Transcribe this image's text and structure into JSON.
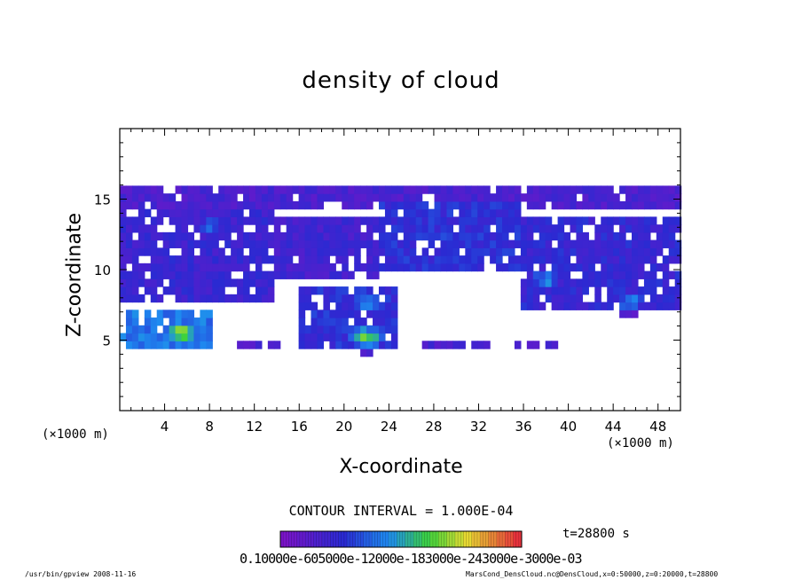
{
  "chart_data": {
    "type": "heatmap",
    "title": "density of cloud",
    "xlabel": "X-coordinate",
    "ylabel": "Z-coordinate",
    "x_unit_label": "(×1000 m)",
    "x_unit_label_right": "(×1000 m)",
    "x_ticks": [
      "4",
      "8",
      "12",
      "16",
      "20",
      "24",
      "28",
      "32",
      "36",
      "40",
      "44",
      "48"
    ],
    "y_ticks": [
      "5",
      "10",
      "15"
    ],
    "xlim": [
      0,
      50
    ],
    "ylim": [
      0,
      20
    ],
    "contour_interval_text": "CONTOUR INTERVAL = 1.000E-04",
    "time_text": "t=28800 s",
    "colorbar_labels_text": "0.10000e-605000e-12000e-183000e-243000e-3000e-03",
    "colorbar_range": [
      0.0001,
      0.003
    ],
    "colors": {
      "low": "#7a14c8",
      "mid_low": "#2a2ad2",
      "mid": "#1e8cf0",
      "mid_high": "#3cd23c",
      "high": "#e6323c"
    },
    "regions": [
      {
        "x": [
          0,
          50
        ],
        "z": [
          14.2,
          16
        ],
        "level": 0.15
      },
      {
        "x": [
          0,
          14
        ],
        "z": [
          7.5,
          14.5
        ],
        "level": 0.2
      },
      {
        "x": [
          14,
          23
        ],
        "z": [
          9.5,
          13.5
        ],
        "level": 0.18
      },
      {
        "x": [
          23,
          36
        ],
        "z": [
          10,
          15
        ],
        "level": 0.25
      },
      {
        "x": [
          36,
          50
        ],
        "z": [
          7,
          14
        ],
        "level": 0.22
      },
      {
        "x": [
          16,
          25
        ],
        "z": [
          4.3,
          9
        ],
        "level": 0.25
      },
      {
        "x": [
          0,
          8.5
        ],
        "z": [
          4.5,
          7
        ],
        "level": 0.4
      },
      {
        "x": [
          27,
          33
        ],
        "z": [
          4.5,
          5
        ],
        "level": 0.15
      },
      {
        "x": [
          35,
          39
        ],
        "z": [
          4.5,
          5
        ],
        "level": 0.15
      },
      {
        "x": [
          10.5,
          14.5
        ],
        "z": [
          4.4,
          4.9
        ],
        "level": 0.15
      }
    ],
    "hotspots": [
      {
        "x": 5.5,
        "z": 5.6,
        "level": 0.7
      },
      {
        "x": 22,
        "z": 5.2,
        "level": 0.65
      },
      {
        "x": 22,
        "z": 7.7,
        "level": 0.45
      },
      {
        "x": 38,
        "z": 9.3,
        "level": 0.45
      },
      {
        "x": 45.5,
        "z": 7.8,
        "level": 0.42
      },
      {
        "x": 8,
        "z": 13,
        "level": 0.35
      },
      {
        "x": 29,
        "z": 12.5,
        "level": 0.32
      }
    ]
  },
  "footer": {
    "left": "/usr/bin/gpview  2008-11-16",
    "right": "MarsCond_DensCloud.nc@DensCloud,x=0:50000,z=0:20000,t=28800"
  }
}
